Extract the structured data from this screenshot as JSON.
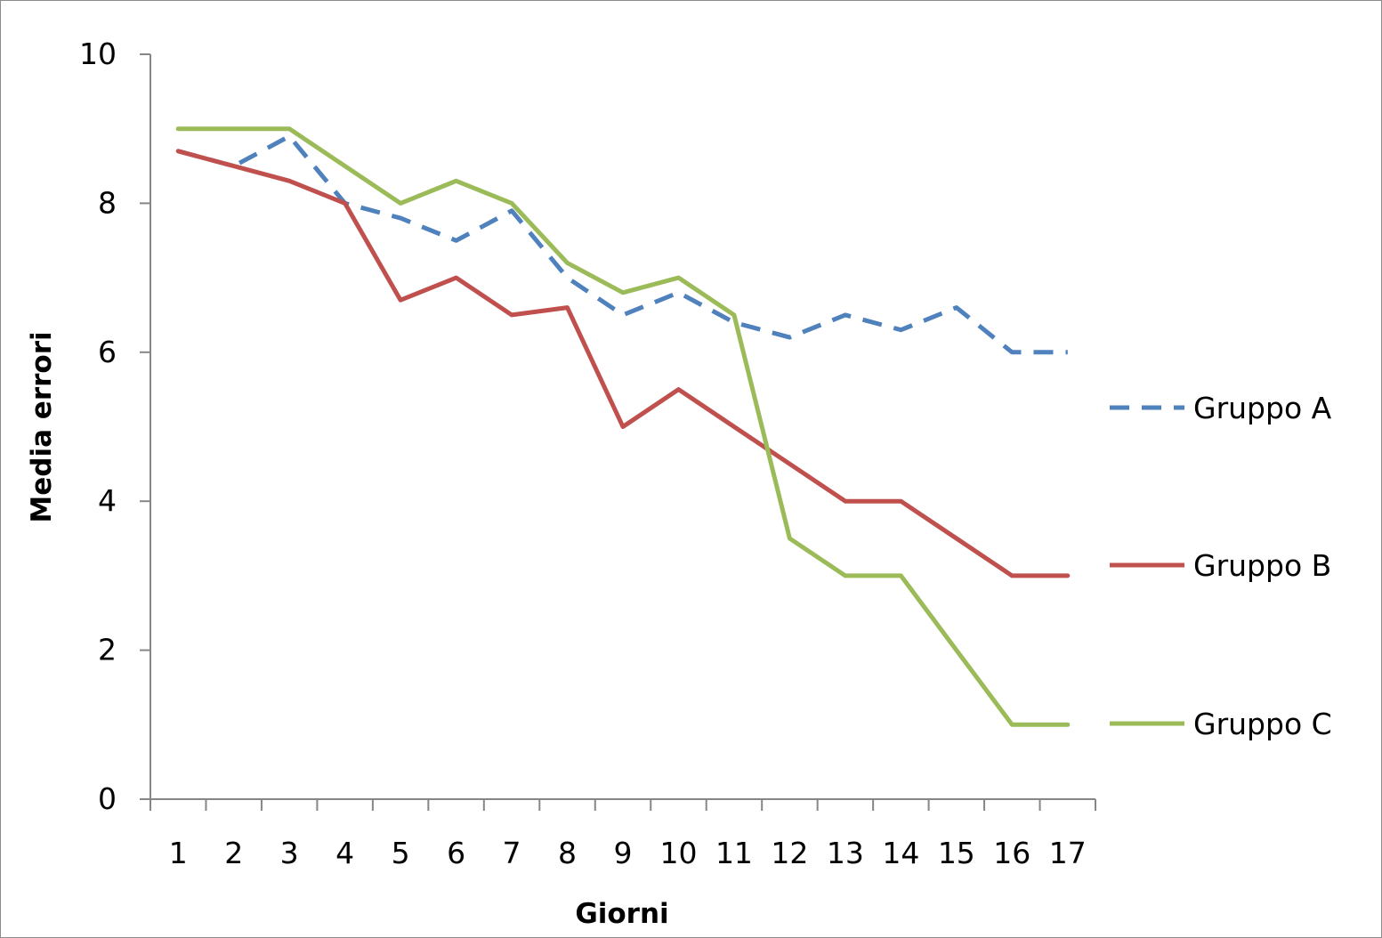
{
  "chart_data": {
    "type": "line",
    "title": "",
    "xlabel": "Giorni",
    "ylabel": "Media errori",
    "categories": [
      "1",
      "2",
      "3",
      "4",
      "5",
      "6",
      "7",
      "8",
      "9",
      "10",
      "11",
      "12",
      "13",
      "14",
      "15",
      "16",
      "17"
    ],
    "ylim": [
      0,
      10
    ],
    "yticks": [
      "0",
      "2",
      "4",
      "6",
      "8",
      "10"
    ],
    "grid": false,
    "legend_position": "right",
    "series": [
      {
        "name": "Gruppo A",
        "color": "#4f81bd",
        "style": "dashed",
        "values": [
          8.7,
          8.5,
          8.9,
          8.0,
          7.8,
          7.5,
          7.9,
          7.0,
          6.5,
          6.8,
          6.4,
          6.2,
          6.5,
          6.3,
          6.6,
          6.0,
          6.0
        ]
      },
      {
        "name": "Gruppo B",
        "color": "#c0504d",
        "style": "solid",
        "values": [
          8.7,
          8.5,
          8.3,
          8.0,
          6.7,
          7.0,
          6.5,
          6.6,
          5.0,
          5.5,
          5.0,
          4.5,
          4.0,
          4.0,
          3.5,
          3.0,
          3.0
        ]
      },
      {
        "name": "Gruppo C",
        "color": "#9bbb59",
        "style": "solid",
        "values": [
          9.0,
          9.0,
          9.0,
          8.5,
          8.0,
          8.3,
          8.0,
          7.2,
          6.8,
          7.0,
          6.5,
          3.5,
          3.0,
          3.0,
          2.0,
          1.0,
          1.0
        ]
      }
    ]
  }
}
